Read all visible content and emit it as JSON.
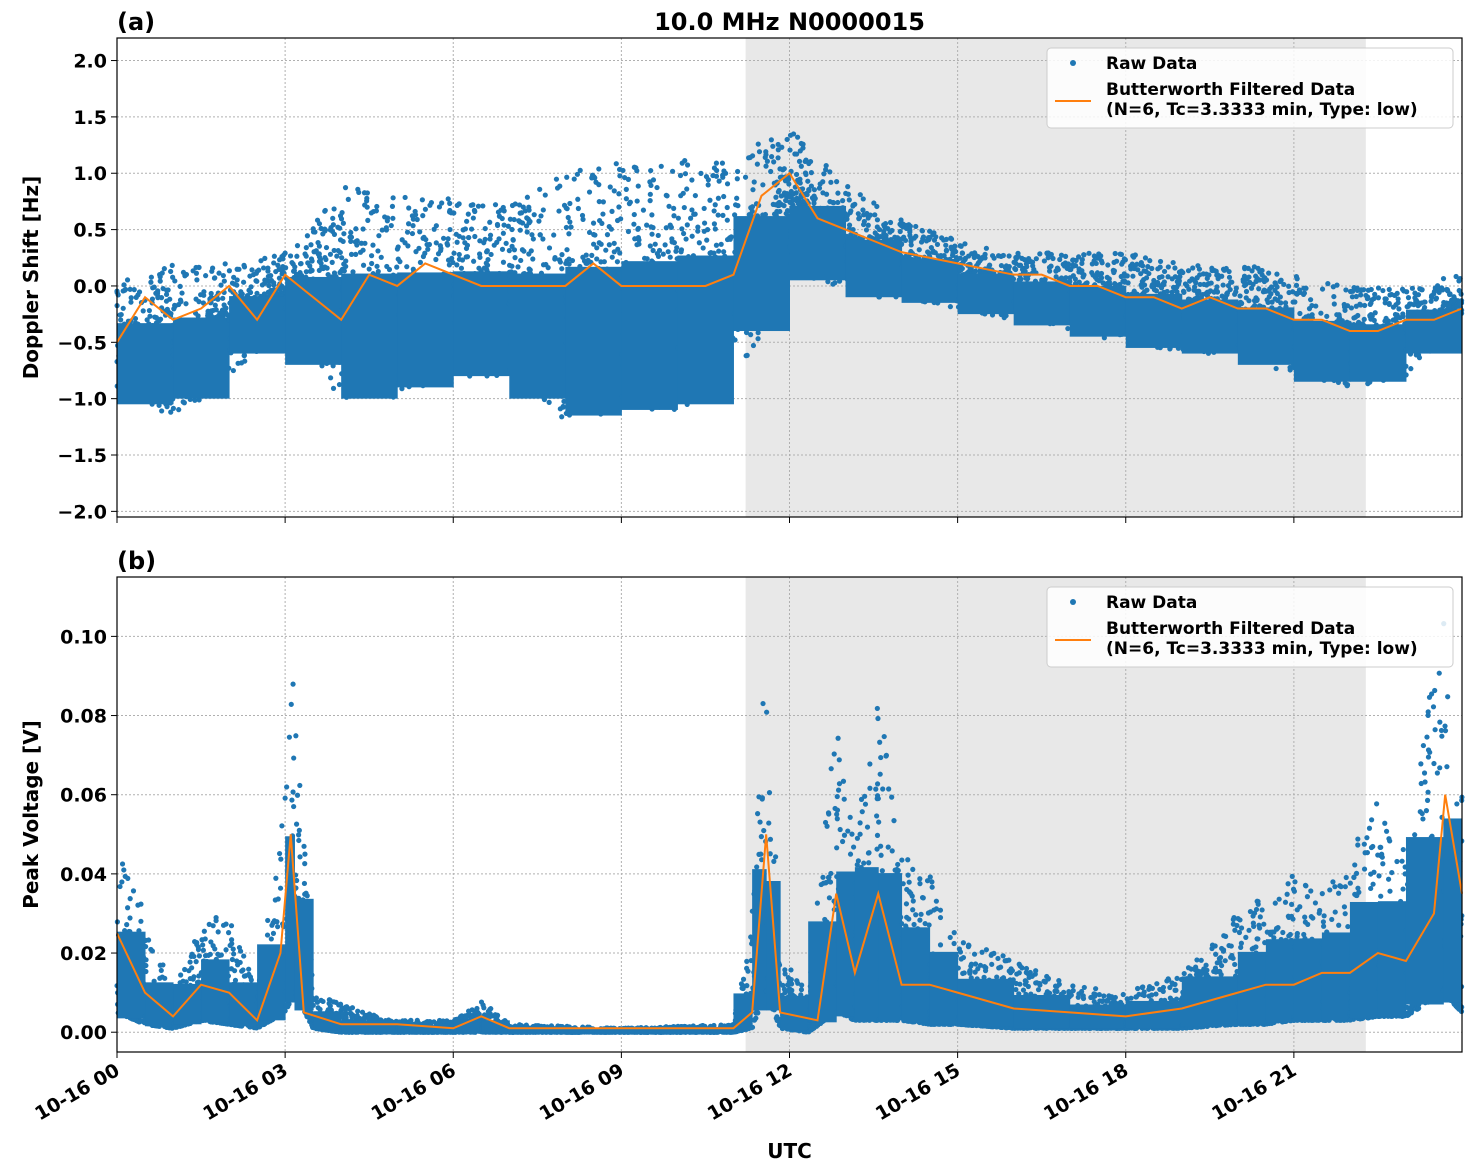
{
  "chart_data": [
    {
      "type": "scatter",
      "panel_label": "(a)",
      "title": "10.0 MHz N0000015",
      "ylabel": "Doppler Shift [Hz]",
      "xlabel": "",
      "ylim": [
        -2.05,
        2.2
      ],
      "yticks": [
        "2.0",
        "1.5",
        "1.0",
        "0.5",
        "0.0",
        "−0.5",
        "−1.0",
        "−1.5",
        "−2.0"
      ],
      "ytick_values": [
        2.0,
        1.5,
        1.0,
        0.5,
        0.0,
        -0.5,
        -1.0,
        -1.5,
        -2.0
      ],
      "grid": true,
      "legend_position": "top-right",
      "shaded_span": [
        "10-16 11:13",
        "10-16 22:17"
      ],
      "series": [
        {
          "name": "Raw Data",
          "kind": "scatter",
          "color": "#1f77b4",
          "x": [
            "10-16 00:00",
            "10-16 01:00",
            "10-16 02:00",
            "10-16 03:00",
            "10-16 04:00",
            "10-16 05:00",
            "10-16 06:00",
            "10-16 07:00",
            "10-16 08:00",
            "10-16 09:00",
            "10-16 10:00",
            "10-16 11:00",
            "10-16 12:00",
            "10-16 13:00",
            "10-16 14:00",
            "10-16 15:00",
            "10-16 16:00",
            "10-16 17:00",
            "10-16 18:00",
            "10-16 19:00",
            "10-16 20:00",
            "10-16 21:00",
            "10-16 22:00",
            "10-16 23:00",
            "10-16 24:00"
          ],
          "low": [
            -0.9,
            -1.2,
            -0.8,
            -0.4,
            -1.0,
            -1.0,
            -0.8,
            -0.8,
            -1.2,
            -1.1,
            -1.1,
            -1.0,
            0.2,
            -0.1,
            -0.1,
            -0.2,
            -0.3,
            -0.4,
            -0.5,
            -0.6,
            -0.6,
            -0.8,
            -0.9,
            -0.8,
            -0.4
          ],
          "high": [
            0.1,
            0.2,
            0.2,
            0.3,
            0.9,
            0.8,
            0.8,
            0.7,
            1.0,
            1.1,
            1.1,
            1.2,
            1.4,
            0.9,
            0.6,
            0.4,
            0.3,
            0.3,
            0.3,
            0.2,
            0.2,
            0.1,
            0.0,
            0.0,
            0.1
          ]
        },
        {
          "name": "Butterworth Filtered Data",
          "name_line2": "(N=6, Tc=3.3333 min, Type: low)",
          "kind": "line",
          "color": "#ff7f0e",
          "x": [
            "10-16 00:00",
            "10-16 00:30",
            "10-16 01:00",
            "10-16 01:30",
            "10-16 02:00",
            "10-16 02:30",
            "10-16 03:00",
            "10-16 03:30",
            "10-16 04:00",
            "10-16 04:30",
            "10-16 05:00",
            "10-16 05:30",
            "10-16 06:00",
            "10-16 06:30",
            "10-16 07:00",
            "10-16 07:30",
            "10-16 08:00",
            "10-16 08:30",
            "10-16 09:00",
            "10-16 09:30",
            "10-16 10:00",
            "10-16 10:30",
            "10-16 11:00",
            "10-16 11:30",
            "10-16 12:00",
            "10-16 12:30",
            "10-16 13:00",
            "10-16 13:30",
            "10-16 14:00",
            "10-16 14:30",
            "10-16 15:00",
            "10-16 15:30",
            "10-16 16:00",
            "10-16 16:30",
            "10-16 17:00",
            "10-16 17:30",
            "10-16 18:00",
            "10-16 18:30",
            "10-16 19:00",
            "10-16 19:30",
            "10-16 20:00",
            "10-16 20:30",
            "10-16 21:00",
            "10-16 21:30",
            "10-16 22:00",
            "10-16 22:30",
            "10-16 23:00",
            "10-16 23:30",
            "10-16 24:00"
          ],
          "y": [
            -0.5,
            -0.1,
            -0.3,
            -0.2,
            0.0,
            -0.3,
            0.1,
            -0.1,
            -0.3,
            0.1,
            0.0,
            0.2,
            0.1,
            0.0,
            0.0,
            0.0,
            0.0,
            0.2,
            0.0,
            0.0,
            0.0,
            0.0,
            0.1,
            0.8,
            1.0,
            0.6,
            0.5,
            0.4,
            0.3,
            0.25,
            0.2,
            0.15,
            0.1,
            0.1,
            0.0,
            0.0,
            -0.1,
            -0.1,
            -0.2,
            -0.1,
            -0.2,
            -0.2,
            -0.3,
            -0.3,
            -0.4,
            -0.4,
            -0.3,
            -0.3,
            -0.2
          ]
        }
      ]
    },
    {
      "type": "scatter",
      "panel_label": "(b)",
      "title": "",
      "ylabel": "Peak Voltage [V]",
      "xlabel": "UTC",
      "ylim": [
        -0.005,
        0.115
      ],
      "yticks": [
        "0.10",
        "0.08",
        "0.06",
        "0.04",
        "0.02",
        "0.00"
      ],
      "ytick_values": [
        0.1,
        0.08,
        0.06,
        0.04,
        0.02,
        0.0
      ],
      "xticks": [
        "10-16 00",
        "10-16 03",
        "10-16 06",
        "10-16 09",
        "10-16 12",
        "10-16 15",
        "10-16 18",
        "10-16 21"
      ],
      "xtick_values": [
        "10-16 00:00",
        "10-16 03:00",
        "10-16 06:00",
        "10-16 09:00",
        "10-16 12:00",
        "10-16 15:00",
        "10-16 18:00",
        "10-16 21:00"
      ],
      "xlim": [
        "10-16 00:00",
        "10-16 24:00"
      ],
      "grid": true,
      "legend_position": "top-right",
      "shaded_span": [
        "10-16 11:13",
        "10-16 22:17"
      ],
      "series": [
        {
          "name": "Raw Data",
          "kind": "scatter",
          "color": "#1f77b4",
          "x": [
            "10-16 00:00",
            "10-16 00:30",
            "10-16 01:00",
            "10-16 01:30",
            "10-16 02:00",
            "10-16 02:30",
            "10-16 03:00",
            "10-16 03:10",
            "10-16 03:30",
            "10-16 04:00",
            "10-16 05:00",
            "10-16 06:00",
            "10-16 06:30",
            "10-16 07:00",
            "10-16 09:00",
            "10-16 11:00",
            "10-16 11:20",
            "10-16 11:35",
            "10-16 11:50",
            "10-16 12:20",
            "10-16 12:50",
            "10-16 13:10",
            "10-16 13:35",
            "10-16 14:00",
            "10-16 14:30",
            "10-16 15:00",
            "10-16 16:00",
            "10-16 17:00",
            "10-16 18:00",
            "10-16 19:00",
            "10-16 20:00",
            "10-16 20:30",
            "10-16 21:00",
            "10-16 21:30",
            "10-16 22:00",
            "10-16 22:30",
            "10-16 23:00",
            "10-16 23:40",
            "10-16 24:00"
          ],
          "low": [
            0.005,
            0.002,
            0.001,
            0.003,
            0.002,
            0.001,
            0.005,
            0.01,
            0.001,
            0.0,
            0.0,
            0.0,
            0.0,
            0.0,
            0.0,
            0.0,
            0.001,
            0.01,
            0.001,
            0.0,
            0.005,
            0.003,
            0.003,
            0.003,
            0.002,
            0.002,
            0.001,
            0.001,
            0.001,
            0.001,
            0.002,
            0.002,
            0.003,
            0.003,
            0.003,
            0.004,
            0.004,
            0.01,
            0.005
          ],
          "high": [
            0.05,
            0.03,
            0.01,
            0.028,
            0.03,
            0.01,
            0.06,
            0.095,
            0.01,
            0.007,
            0.003,
            0.003,
            0.008,
            0.002,
            0.001,
            0.002,
            0.03,
            0.1,
            0.02,
            0.01,
            0.08,
            0.05,
            0.085,
            0.045,
            0.04,
            0.025,
            0.018,
            0.012,
            0.01,
            0.015,
            0.03,
            0.035,
            0.04,
            0.035,
            0.045,
            0.06,
            0.045,
            0.11,
            0.06
          ]
        },
        {
          "name": "Butterworth Filtered Data",
          "name_line2": "(N=6, Tc=3.3333 min, Type: low)",
          "kind": "line",
          "color": "#ff7f0e",
          "x": [
            "10-16 00:00",
            "10-16 00:30",
            "10-16 01:00",
            "10-16 01:30",
            "10-16 02:00",
            "10-16 02:30",
            "10-16 02:55",
            "10-16 03:06",
            "10-16 03:20",
            "10-16 04:00",
            "10-16 05:00",
            "10-16 06:00",
            "10-16 06:30",
            "10-16 07:00",
            "10-16 09:00",
            "10-16 11:00",
            "10-16 11:20",
            "10-16 11:35",
            "10-16 11:50",
            "10-16 12:30",
            "10-16 12:50",
            "10-16 13:10",
            "10-16 13:35",
            "10-16 14:00",
            "10-16 14:30",
            "10-16 15:00",
            "10-16 16:00",
            "10-16 17:00",
            "10-16 18:00",
            "10-16 19:00",
            "10-16 20:00",
            "10-16 20:30",
            "10-16 21:00",
            "10-16 21:30",
            "10-16 22:00",
            "10-16 22:30",
            "10-16 23:00",
            "10-16 23:30",
            "10-16 23:42",
            "10-16 24:00"
          ],
          "y": [
            0.025,
            0.01,
            0.004,
            0.012,
            0.01,
            0.003,
            0.02,
            0.05,
            0.005,
            0.002,
            0.002,
            0.001,
            0.004,
            0.001,
            0.001,
            0.001,
            0.005,
            0.05,
            0.005,
            0.003,
            0.035,
            0.015,
            0.035,
            0.012,
            0.012,
            0.01,
            0.006,
            0.005,
            0.004,
            0.006,
            0.01,
            0.012,
            0.012,
            0.015,
            0.015,
            0.02,
            0.018,
            0.03,
            0.06,
            0.035
          ]
        }
      ]
    }
  ]
}
